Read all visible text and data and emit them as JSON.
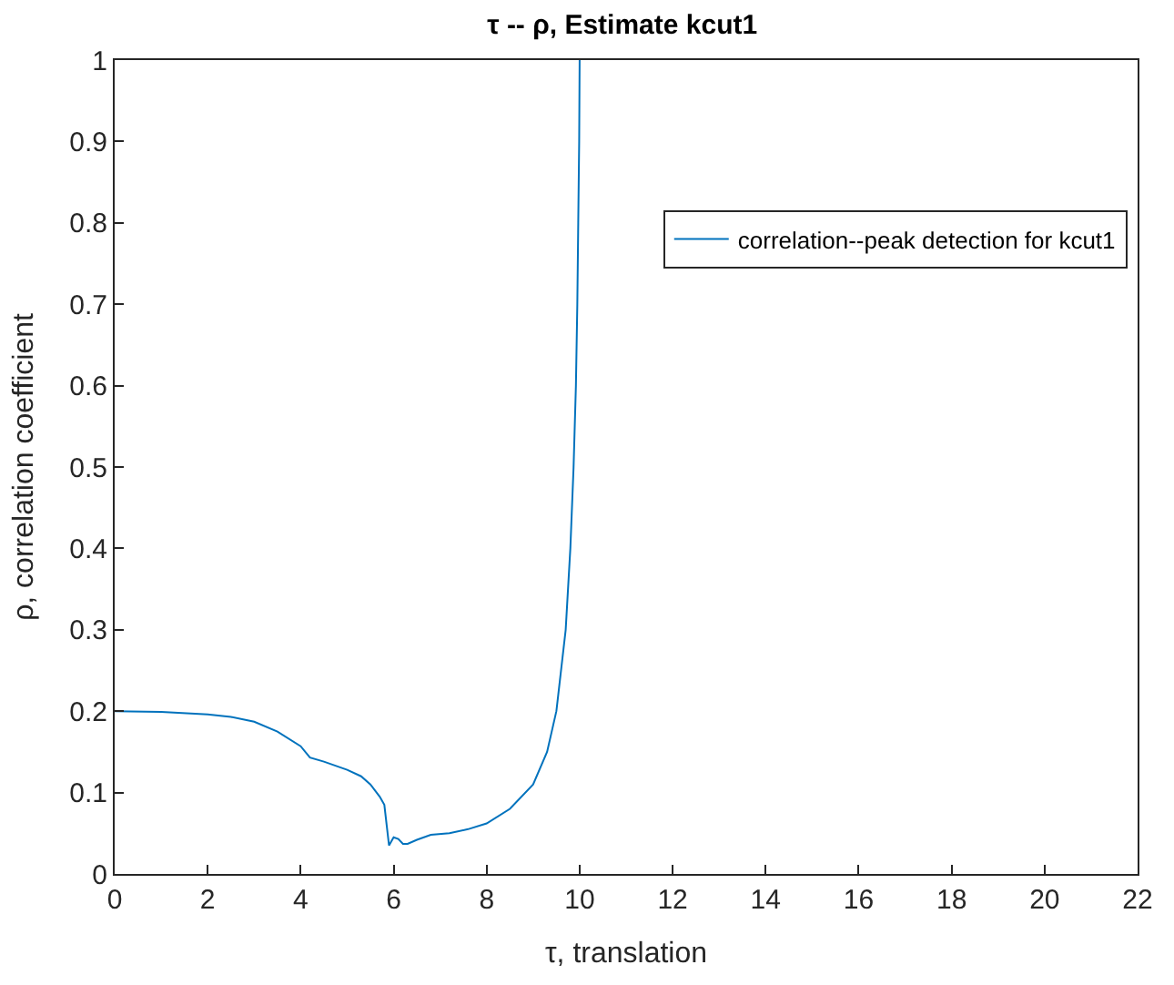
{
  "chart_data": {
    "type": "line",
    "title": "τ -- ρ, Estimate kcut1",
    "xlabel": "τ, translation",
    "ylabel": "ρ, correlation coefficient",
    "xlim": [
      0,
      22
    ],
    "xticks": [
      0,
      2,
      4,
      6,
      8,
      10,
      12,
      14,
      16,
      18,
      20,
      22
    ],
    "ylim": [
      0,
      1
    ],
    "yticks": [
      0,
      0.1,
      0.2,
      0.3,
      0.4,
      0.5,
      0.6,
      0.7,
      0.8,
      0.9,
      1
    ],
    "legend": "right",
    "marker": "none",
    "line_style": "solid",
    "series": [
      {
        "name": "correlation--peak detection for kcut1",
        "color": "#0072bd",
        "x": [
          0,
          1,
          2,
          2.5,
          3,
          3.5,
          4,
          4.2,
          4.5,
          5,
          5.3,
          5.5,
          5.7,
          5.8,
          5.85,
          5.9,
          5.95,
          6.0,
          6.1,
          6.2,
          6.3,
          6.5,
          6.8,
          7.2,
          7.6,
          8,
          8.5,
          9,
          9.3,
          9.5,
          9.7,
          9.8,
          9.87,
          9.92,
          9.95,
          9.97,
          9.99,
          10
        ],
        "values": [
          0.2,
          0.199,
          0.196,
          0.193,
          0.187,
          0.175,
          0.157,
          0.143,
          0.138,
          0.128,
          0.12,
          0.11,
          0.095,
          0.085,
          0.06,
          0.035,
          0.04,
          0.045,
          0.043,
          0.037,
          0.037,
          0.042,
          0.048,
          0.05,
          0.055,
          0.062,
          0.08,
          0.11,
          0.15,
          0.2,
          0.3,
          0.4,
          0.5,
          0.6,
          0.7,
          0.8,
          0.9,
          1.0
        ]
      }
    ]
  }
}
